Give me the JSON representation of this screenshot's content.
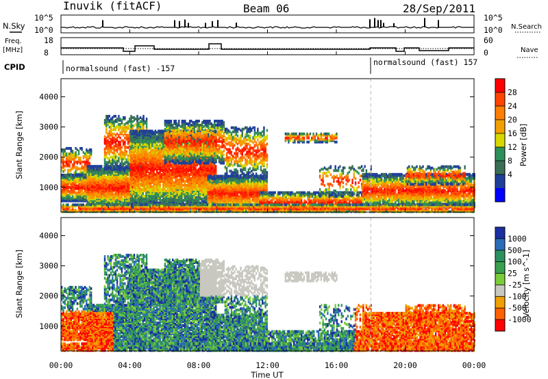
{
  "header": {
    "station": "Inuvik (fitACF)",
    "beam": "Beam 06",
    "date": "28/Sep/2011"
  },
  "panels": {
    "nsky": {
      "left_label": "N.Sky",
      "right_label": "N.Search",
      "left_ticks": [
        "10^5",
        "10^0"
      ],
      "right_ticks": [
        "10^5",
        "10^0"
      ]
    },
    "freq": {
      "left_label_1": "Freq.",
      "left_label_2": "[MHz]",
      "right_label": "Nave",
      "left_ticks": [
        "18",
        "8"
      ],
      "right_ticks": [
        "60",
        "0"
      ]
    },
    "cpid": {
      "label": "CPID",
      "segments": [
        "normalsound (fast) -157",
        "normalsound (fast) 157"
      ]
    }
  },
  "chart_data": [
    {
      "type": "heatmap",
      "name": "power",
      "ylabel": "Slant Range [km]",
      "ylim": [
        180,
        4600
      ],
      "yticks": [
        1000,
        2000,
        3000,
        4000
      ],
      "colorbar_label": "Power [dB]",
      "colorbar_ticks": [
        "28",
        "24",
        "20",
        "16",
        "12",
        "8",
        "4"
      ],
      "colorbar_colors": [
        "#ff0000",
        "#ff4400",
        "#ff8000",
        "#f2a000",
        "#d8d800",
        "#2f8f5a",
        "#3a6e55",
        "#1f3f9a",
        "#0000ff"
      ]
    },
    {
      "type": "heatmap",
      "name": "velocity",
      "ylabel": "Slant Range [km]",
      "xlabel": "Time UT",
      "ylim": [
        180,
        4600
      ],
      "yticks": [
        1000,
        2000,
        3000,
        4000
      ],
      "colorbar_label": "Velocity [m s^-1]",
      "colorbar_ticks": [
        "1000",
        "500",
        "100",
        "25",
        "-25",
        "-100",
        "-500",
        "-1000"
      ],
      "colorbar_colors": [
        "#1a2fa0",
        "#2b6db8",
        "#2e8f60",
        "#3aa050",
        "#7acc3a",
        "#c8c8c0",
        "#f0a000",
        "#ff6000",
        "#ff0000"
      ]
    }
  ],
  "time_axis": {
    "label": "Time UT",
    "ticks": [
      "00:00",
      "04:00",
      "08:00",
      "12:00",
      "16:00",
      "20:00",
      "00:00"
    ]
  }
}
